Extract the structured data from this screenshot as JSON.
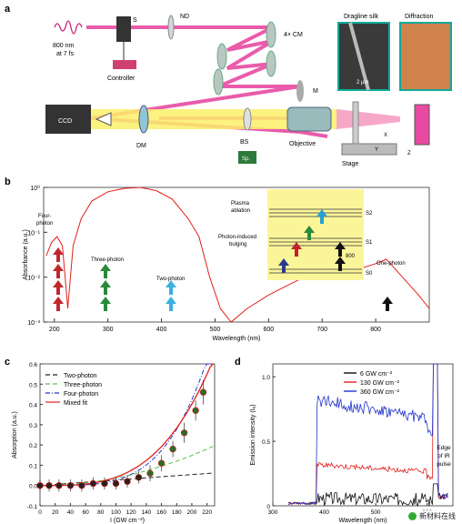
{
  "panels": {
    "a": "a",
    "b": "b",
    "c": "c",
    "d": "d"
  },
  "panel_a": {
    "laser": "800 nm",
    "laser2": "at 7 fs",
    "s_label": "S",
    "nd_label": "ND",
    "cm_label": "4× CM",
    "m_label": "M",
    "controller": "Controller",
    "ccd": "CCD",
    "dm": "DM",
    "bs": "BS",
    "sp": "Sp.",
    "objective": "Objective",
    "stage": "Stage",
    "dragline": "Dragline silk",
    "diffraction": "Diffraction",
    "scalebar": "2 µm",
    "x": "X",
    "y": "Y",
    "z": "Z"
  },
  "panel_b": {
    "ylabel": "Absorbance (a.u.)",
    "xlabel": "Wavelength (nm)",
    "yticks": [
      "10⁰",
      "10⁻¹",
      "10⁻²",
      "10⁻³"
    ],
    "xticks": [
      "200",
      "300",
      "400",
      "500",
      "600",
      "700",
      "800"
    ],
    "four_photon": [
      "Four-",
      "photon"
    ],
    "three_photon": "Three-photon",
    "two_photon": "Two-photon",
    "one_photon": "One-photon",
    "plasma": [
      "Plasma",
      "ablation"
    ],
    "bulging": [
      "Photon-induced",
      "bulging"
    ],
    "s2": "S2",
    "s1": "S1",
    "s0": "S0",
    "box800": "800"
  },
  "chart_data": [
    {
      "type": "line",
      "title": "",
      "xlabel": "Wavelength (nm)",
      "ylabel": "Absorbance (a.u.)",
      "xlim": [
        180,
        900
      ],
      "ylim_log10": [
        -3,
        0
      ],
      "log_y": true,
      "series": [
        {
          "x": [
            185,
            195,
            205,
            215,
            220,
            225,
            235,
            250,
            270,
            300,
            330,
            360,
            390,
            420,
            450,
            470,
            490,
            510,
            530,
            560,
            600,
            640,
            680,
            720,
            760,
            800,
            820,
            850,
            880,
            900
          ],
          "y": [
            0.03,
            0.06,
            0.08,
            0.05,
            0.01,
            0.002,
            0.05,
            0.2,
            0.5,
            0.8,
            0.95,
            1.0,
            0.85,
            0.55,
            0.2,
            0.08,
            0.01,
            0.002,
            0.001,
            0.002,
            0.004,
            0.007,
            0.012,
            0.015,
            0.014,
            0.02,
            0.025,
            0.01,
            0.004,
            0.002
          ]
        }
      ]
    },
    {
      "type": "scatter",
      "xlabel": "I (GW cm⁻²)",
      "ylabel": "Absorption (a.u.)",
      "xlim": [
        0,
        230
      ],
      "ylim": [
        -0.1,
        0.6
      ],
      "xticks": [
        "0",
        "20",
        "40",
        "60",
        "80",
        "100",
        "120",
        "140",
        "160",
        "180",
        "200",
        "220"
      ],
      "yticks": [
        "0.6",
        "0.5",
        "0.4",
        "0.3",
        "0.2",
        "0.1",
        "0.0",
        "-0.1"
      ],
      "legend": [
        "Two-photon",
        "Three-photon",
        "Four-photon",
        "Mixed fit"
      ],
      "legend_colors": [
        "#222222",
        "#5bbf4a",
        "#2233cc",
        "#e0201b"
      ],
      "points": {
        "x": [
          0,
          12,
          25,
          40,
          55,
          70,
          85,
          100,
          115,
          130,
          145,
          160,
          175,
          190,
          205,
          215
        ],
        "y": [
          0.0,
          0.0,
          0.0,
          0.0,
          0.0,
          0.01,
          0.01,
          0.01,
          0.02,
          0.04,
          0.06,
          0.11,
          0.18,
          0.26,
          0.37,
          0.46
        ],
        "err": [
          0.03,
          0.03,
          0.03,
          0.03,
          0.03,
          0.03,
          0.03,
          0.03,
          0.03,
          0.03,
          0.04,
          0.04,
          0.04,
          0.05,
          0.05,
          0.06
        ]
      }
    },
    {
      "type": "line",
      "xlabel": "Wavelength (nm)",
      "ylabel": "Emission intensity (Iₑ)",
      "xlim": [
        300,
        650
      ],
      "ylim": [
        0,
        1.1
      ],
      "xticks": [
        "300",
        "400",
        "500",
        "600"
      ],
      "yticks": [
        "1.0",
        "0.5",
        "0"
      ],
      "series": [
        {
          "name": "6 GW cm⁻²",
          "color": "#111111"
        },
        {
          "name": "130 GW cm⁻²",
          "color": "#e0201b"
        },
        {
          "name": "360 GW cm⁻²",
          "color": "#2233cc"
        }
      ],
      "annotation": [
        "Edge",
        "of IR",
        "pulse"
      ]
    }
  ],
  "watermark": "新材料在线"
}
